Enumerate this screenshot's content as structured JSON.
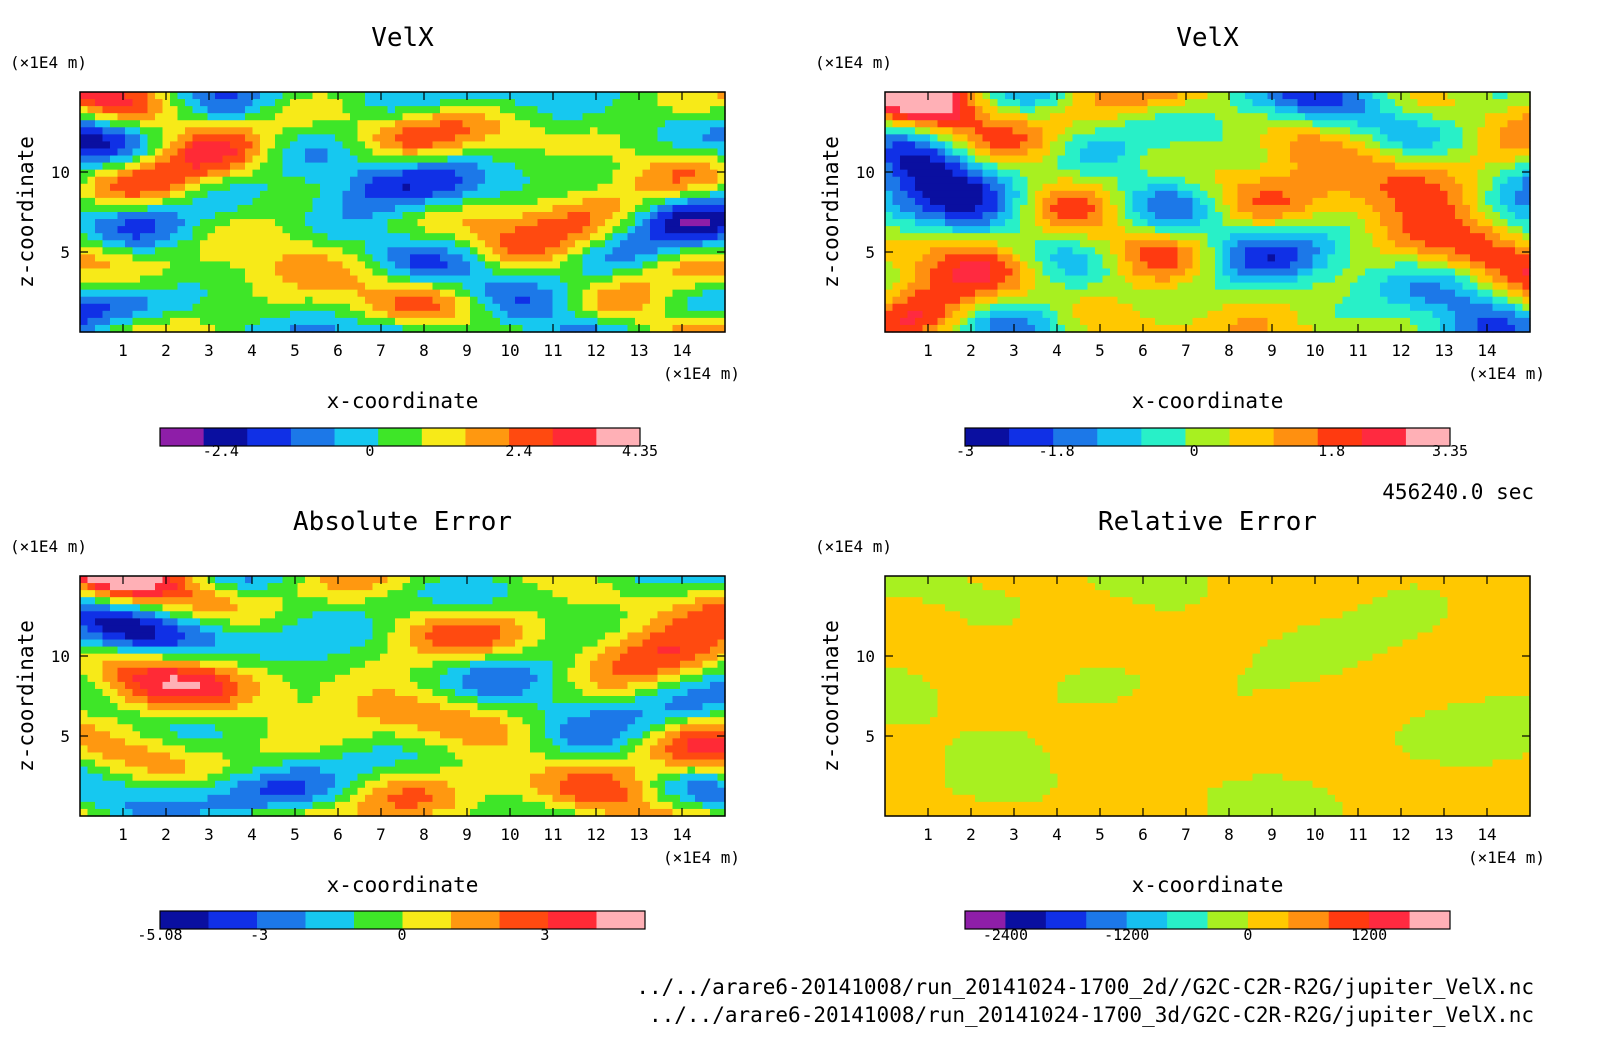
{
  "time_label": "456240.0 sec",
  "files": [
    "../../arare6-20141008/run_20141024-1700_2d//G2C-C2R-R2G/jupiter_VelX.nc",
    "../../arare6-20141008/run_20141024-1700_3d/G2C-C2R-R2G/jupiter_VelX.nc"
  ],
  "chart_data": [
    {
      "type": "heatmap",
      "title": "VelX",
      "xlabel": "x-coordinate",
      "ylabel": "z-coordinate",
      "x_unit": "(×1E4 m)",
      "y_unit": "(×1E4 m)",
      "xlim": [
        0,
        15
      ],
      "ylim": [
        0,
        15
      ],
      "x_ticks": [
        "1",
        "2",
        "3",
        "4",
        "5",
        "6",
        "7",
        "8",
        "9",
        "10",
        "11",
        "12",
        "13",
        "14"
      ],
      "y_ticks": [
        "5",
        "10"
      ],
      "colorbar": {
        "colors": [
          "#8e1ea8",
          "#0a0fa0",
          "#1030e6",
          "#1c78e8",
          "#16c8f0",
          "#3ee628",
          "#f7ea18",
          "#ff9810",
          "#ff4a10",
          "#ff2a36",
          "#ffb0b6"
        ],
        "tick_labels": [
          "-2.4",
          "0",
          "2.4",
          "4.35"
        ],
        "tick_values": [
          -2.4,
          0,
          2.4,
          4.35
        ],
        "range": [
          -3.38,
          4.35
        ]
      },
      "pattern_seed": 1
    },
    {
      "type": "heatmap",
      "title": "VelX",
      "xlabel": "x-coordinate",
      "ylabel": "z-coordinate",
      "x_unit": "(×1E4 m)",
      "y_unit": "(×1E4 m)",
      "xlim": [
        0,
        15
      ],
      "ylim": [
        0,
        15
      ],
      "x_ticks": [
        "1",
        "2",
        "3",
        "4",
        "5",
        "6",
        "7",
        "8",
        "9",
        "10",
        "11",
        "12",
        "13",
        "14"
      ],
      "y_ticks": [
        "5",
        "10"
      ],
      "colorbar": {
        "colors": [
          "#0a0fa0",
          "#1030e6",
          "#1c78e8",
          "#16c0f0",
          "#28f0c8",
          "#a8f020",
          "#ffc800",
          "#ff9010",
          "#ff3a10",
          "#ff2a40",
          "#ffb0b6"
        ],
        "tick_labels": [
          "-3",
          "-1.8",
          "0",
          "1.8",
          "3.35"
        ],
        "tick_values": [
          -3,
          -1.8,
          0,
          1.8,
          3.35
        ],
        "range": [
          -3,
          3.35
        ]
      },
      "pattern_seed": 2
    },
    {
      "type": "heatmap",
      "title": "Absolute Error",
      "xlabel": "x-coordinate",
      "ylabel": "z-coordinate",
      "x_unit": "(×1E4 m)",
      "y_unit": "(×1E4 m)",
      "xlim": [
        0,
        15
      ],
      "ylim": [
        0,
        15
      ],
      "x_ticks": [
        "1",
        "2",
        "3",
        "4",
        "5",
        "6",
        "7",
        "8",
        "9",
        "10",
        "11",
        "12",
        "13",
        "14"
      ],
      "y_ticks": [
        "5",
        "10"
      ],
      "colorbar": {
        "colors": [
          "#0a0fa0",
          "#1030e6",
          "#1c78e8",
          "#16c8f0",
          "#3ee628",
          "#f7ea18",
          "#ff9810",
          "#ff4a10",
          "#ff2a36",
          "#ffb0b6"
        ],
        "tick_labels": [
          "-5.08",
          "-3",
          "0",
          "3"
        ],
        "tick_values": [
          -5.08,
          -3,
          0,
          3
        ],
        "range": [
          -5.08,
          5.1
        ]
      },
      "pattern_seed": 3
    },
    {
      "type": "heatmap",
      "title": "Relative Error",
      "xlabel": "x-coordinate",
      "ylabel": "z-coordinate",
      "x_unit": "(×1E4 m)",
      "y_unit": "(×1E4 m)",
      "xlim": [
        0,
        15
      ],
      "ylim": [
        0,
        15
      ],
      "x_ticks": [
        "1",
        "2",
        "3",
        "4",
        "5",
        "6",
        "7",
        "8",
        "9",
        "10",
        "11",
        "12",
        "13",
        "14"
      ],
      "y_ticks": [
        "5",
        "10"
      ],
      "colorbar": {
        "colors": [
          "#8e1ea8",
          "#0a0fa0",
          "#1030e6",
          "#1c78e8",
          "#16c0f0",
          "#28f0c8",
          "#a8f020",
          "#ffc800",
          "#ff9010",
          "#ff3a10",
          "#ff2a40",
          "#ffb0b6"
        ],
        "tick_labels": [
          "-2400",
          "-1200",
          "0",
          "1200"
        ],
        "tick_values": [
          -2400,
          -1200,
          0,
          1200
        ],
        "range": [
          -2800,
          2000
        ]
      },
      "pattern_seed": 4
    }
  ]
}
